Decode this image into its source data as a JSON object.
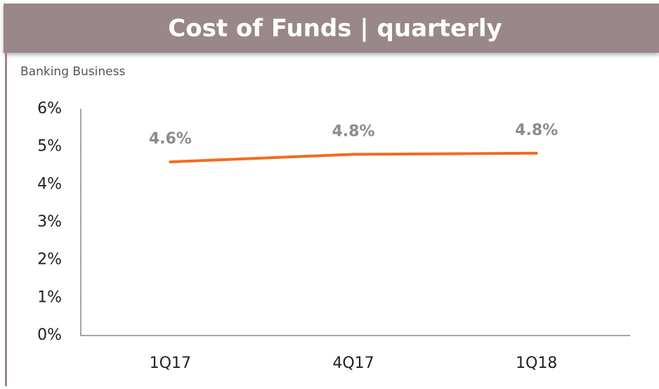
{
  "chart_data": {
    "type": "line",
    "title": "Cost of Funds | quarterly",
    "subtitle": "Banking Business",
    "categories": [
      "1Q17",
      "4Q17",
      "1Q18"
    ],
    "series": [
      {
        "name": "Cost of Funds",
        "color": "#f26b21",
        "values": [
          4.6,
          4.8,
          4.83
        ],
        "value_labels": [
          "4.6%",
          "4.8%",
          "4.8%"
        ]
      }
    ],
    "ylim": [
      0,
      6
    ],
    "yticks": [
      {
        "value": 0,
        "label": "0%"
      },
      {
        "value": 1,
        "label": "1%"
      },
      {
        "value": 2,
        "label": "2%"
      },
      {
        "value": 3,
        "label": "3%"
      },
      {
        "value": 4,
        "label": "4%"
      },
      {
        "value": 5,
        "label": "5%"
      },
      {
        "value": 6,
        "label": "6%"
      }
    ]
  }
}
